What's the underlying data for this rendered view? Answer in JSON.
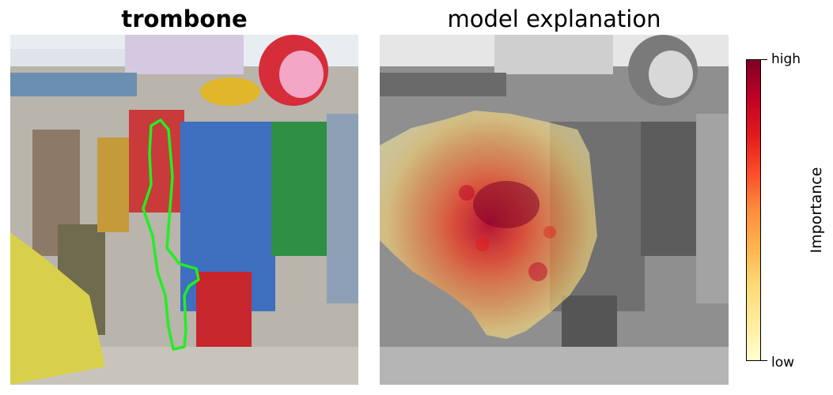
{
  "left_panel": {
    "title": "trombone"
  },
  "right_panel": {
    "title": "model explanation"
  },
  "colorbar": {
    "high_label": "high",
    "low_label": "low",
    "axis_label": "Importance",
    "colors": [
      "#ffffcc",
      "#ffeda0",
      "#fed976",
      "#feb24c",
      "#fd8d3c",
      "#fc4e2a",
      "#e31a1c",
      "#bd0026",
      "#800026"
    ]
  },
  "colors": {
    "segmentation_outline": "#22ee22",
    "background": "#ffffff"
  }
}
